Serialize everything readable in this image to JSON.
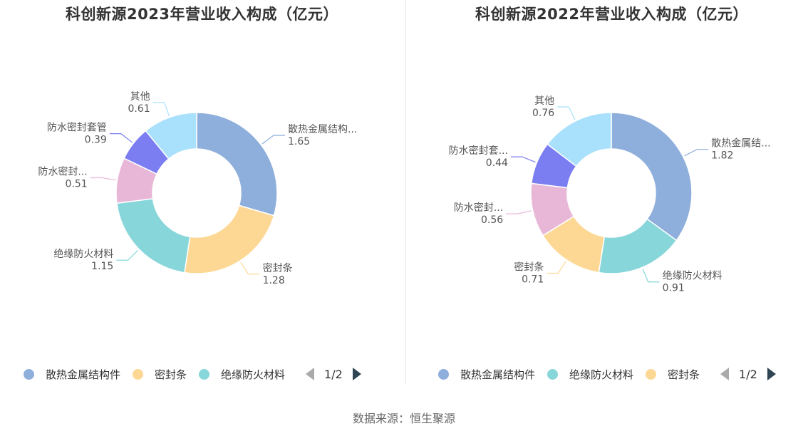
{
  "chart_data": [
    {
      "type": "pie",
      "title": "科创新源2023年营业收入构成（亿元）",
      "slices": [
        {
          "name": "散热金属结构件",
          "label": "散热金属结构...",
          "value": 1.65,
          "value_text": "1.65",
          "color": "#8eaedc"
        },
        {
          "name": "密封条",
          "label": "密封条",
          "value": 1.28,
          "value_text": "1.28",
          "color": "#fdd894"
        },
        {
          "name": "绝缘防火材料",
          "label": "绝缘防火材料",
          "value": 1.15,
          "value_text": "1.15",
          "color": "#87d6da"
        },
        {
          "name": "防水密封...",
          "label": "防水密封...",
          "value": 0.51,
          "value_text": "0.51",
          "color": "#e8b7d8"
        },
        {
          "name": "防水密封套管",
          "label": "防水密封套管",
          "value": 0.39,
          "value_text": "0.39",
          "color": "#7b7ef0"
        },
        {
          "name": "其他",
          "label": "其他",
          "value": 0.61,
          "value_text": "0.61",
          "color": "#a9e0fb"
        }
      ],
      "legend": {
        "items": [
          "散热金属结构件",
          "密封条",
          "绝缘防火材料"
        ],
        "page": "1/2",
        "position": "bottom"
      }
    },
    {
      "type": "pie",
      "title": "科创新源2022年营业收入构成（亿元）",
      "slices": [
        {
          "name": "散热金属结构件",
          "label": "散热金属结...",
          "value": 1.82,
          "value_text": "1.82",
          "color": "#8eaedc"
        },
        {
          "name": "绝缘防火材料",
          "label": "绝缘防火材料",
          "value": 0.91,
          "value_text": "0.91",
          "color": "#87d6da"
        },
        {
          "name": "密封条",
          "label": "密封条",
          "value": 0.71,
          "value_text": "0.71",
          "color": "#fdd894"
        },
        {
          "name": "防水密封...",
          "label": "防水密封...",
          "value": 0.56,
          "value_text": "0.56",
          "color": "#e8b7d8"
        },
        {
          "name": "防水密封套...",
          "label": "防水密封套...",
          "value": 0.44,
          "value_text": "0.44",
          "color": "#7b7ef0"
        },
        {
          "name": "其他",
          "label": "其他",
          "value": 0.76,
          "value_text": "0.76",
          "color": "#a9e0fb"
        }
      ],
      "legend": {
        "items": [
          "散热金属结构件",
          "绝缘防火材料",
          "密封条"
        ],
        "page": "1/2",
        "position": "bottom"
      }
    }
  ],
  "source": "数据来源：恒生聚源"
}
